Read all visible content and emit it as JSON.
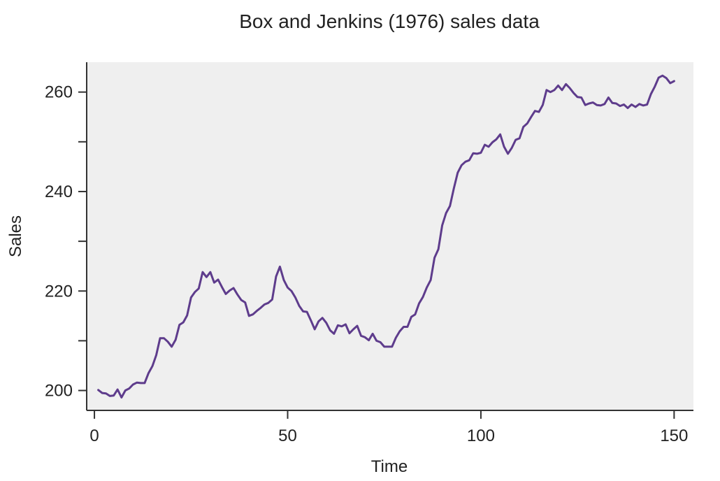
{
  "chart_data": {
    "type": "line",
    "title": "Box and Jenkins (1976) sales data",
    "xlabel": "Time",
    "ylabel": "Sales",
    "xlim": [
      -2,
      155
    ],
    "ylim": [
      196,
      266
    ],
    "xticks": [
      0,
      50,
      100,
      150
    ],
    "yticks": [
      200,
      210,
      220,
      230,
      240,
      250,
      260
    ],
    "ytick_labels": [
      "200",
      "",
      "220",
      "",
      "240",
      "",
      "260"
    ],
    "grid": false,
    "background": "#efefef",
    "line_color": "#5e3c8c",
    "series": [
      {
        "x": [
          1,
          2,
          3,
          4,
          5,
          6,
          7,
          8,
          9,
          10,
          11,
          12,
          13,
          14,
          15,
          16,
          17,
          18,
          19,
          20,
          21,
          22,
          23,
          24,
          25,
          26,
          27,
          28,
          29,
          30,
          31,
          32,
          33,
          34,
          35,
          36,
          37,
          38,
          39,
          40,
          41,
          42,
          43,
          44,
          45,
          46,
          47,
          48,
          49,
          50,
          51,
          52,
          53,
          54,
          55,
          56,
          57,
          58,
          59,
          60,
          61,
          62,
          63,
          64,
          65,
          66,
          67,
          68,
          69,
          70,
          71,
          72,
          73,
          74,
          75,
          76,
          77,
          78,
          79,
          80,
          81,
          82,
          83,
          84,
          85,
          86,
          87,
          88,
          89,
          90,
          91,
          92,
          93,
          94,
          95,
          96,
          97,
          98,
          99,
          100,
          101,
          102,
          103,
          104,
          105,
          106,
          107,
          108,
          109,
          110,
          111,
          112,
          113,
          114,
          115,
          116,
          117,
          118,
          119,
          120,
          121,
          122,
          123,
          124,
          125,
          126,
          127,
          128,
          129,
          130,
          131,
          132,
          133,
          134,
          135,
          136,
          137,
          138,
          139,
          140,
          141,
          142,
          143,
          144,
          145,
          146,
          147,
          148,
          149,
          150
        ],
        "y": [
          200.1,
          199.5,
          199.4,
          198.9,
          199.0,
          200.2,
          198.6,
          200.0,
          200.4,
          201.2,
          201.6,
          201.5,
          201.5,
          203.5,
          204.9,
          207.1,
          210.5,
          210.5,
          209.8,
          208.8,
          210.2,
          213.2,
          213.7,
          215.1,
          218.7,
          219.8,
          220.5,
          223.8,
          222.8,
          223.8,
          221.7,
          222.3,
          220.8,
          219.4,
          220.1,
          220.6,
          219.3,
          218.2,
          217.7,
          215.0,
          215.3,
          216.0,
          216.6,
          217.3,
          217.6,
          218.3,
          222.9,
          224.9,
          222.2,
          220.7,
          220.0,
          218.7,
          217.0,
          215.9,
          215.8,
          214.1,
          212.3,
          213.9,
          214.6,
          213.6,
          212.1,
          211.4,
          213.1,
          212.9,
          213.3,
          211.5,
          212.3,
          213.0,
          211.0,
          210.7,
          210.1,
          211.4,
          210.0,
          209.7,
          208.8,
          208.8,
          208.8,
          210.6,
          211.9,
          212.8,
          212.8,
          214.8,
          215.3,
          217.5,
          218.8,
          220.7,
          222.2,
          226.7,
          228.4,
          233.2,
          235.7,
          237.1,
          240.6,
          243.8,
          245.3,
          246.0,
          246.3,
          247.7,
          247.6,
          247.8,
          249.4,
          249.0,
          249.9,
          250.5,
          251.5,
          249.0,
          247.6,
          248.8,
          250.4,
          250.7,
          253.0,
          253.7,
          255.0,
          256.2,
          256.0,
          257.4,
          260.4,
          260.0,
          260.4,
          261.3,
          260.4,
          261.6,
          260.8,
          259.8,
          259.0,
          258.9,
          257.4,
          257.7,
          257.9,
          257.4,
          257.3,
          257.6,
          258.9,
          257.8,
          257.7,
          257.2,
          257.5,
          256.8,
          257.5,
          257.0,
          257.6,
          257.3,
          257.5,
          259.6,
          261.1,
          262.9,
          263.3,
          262.8,
          261.8,
          262.2
        ]
      }
    ]
  }
}
